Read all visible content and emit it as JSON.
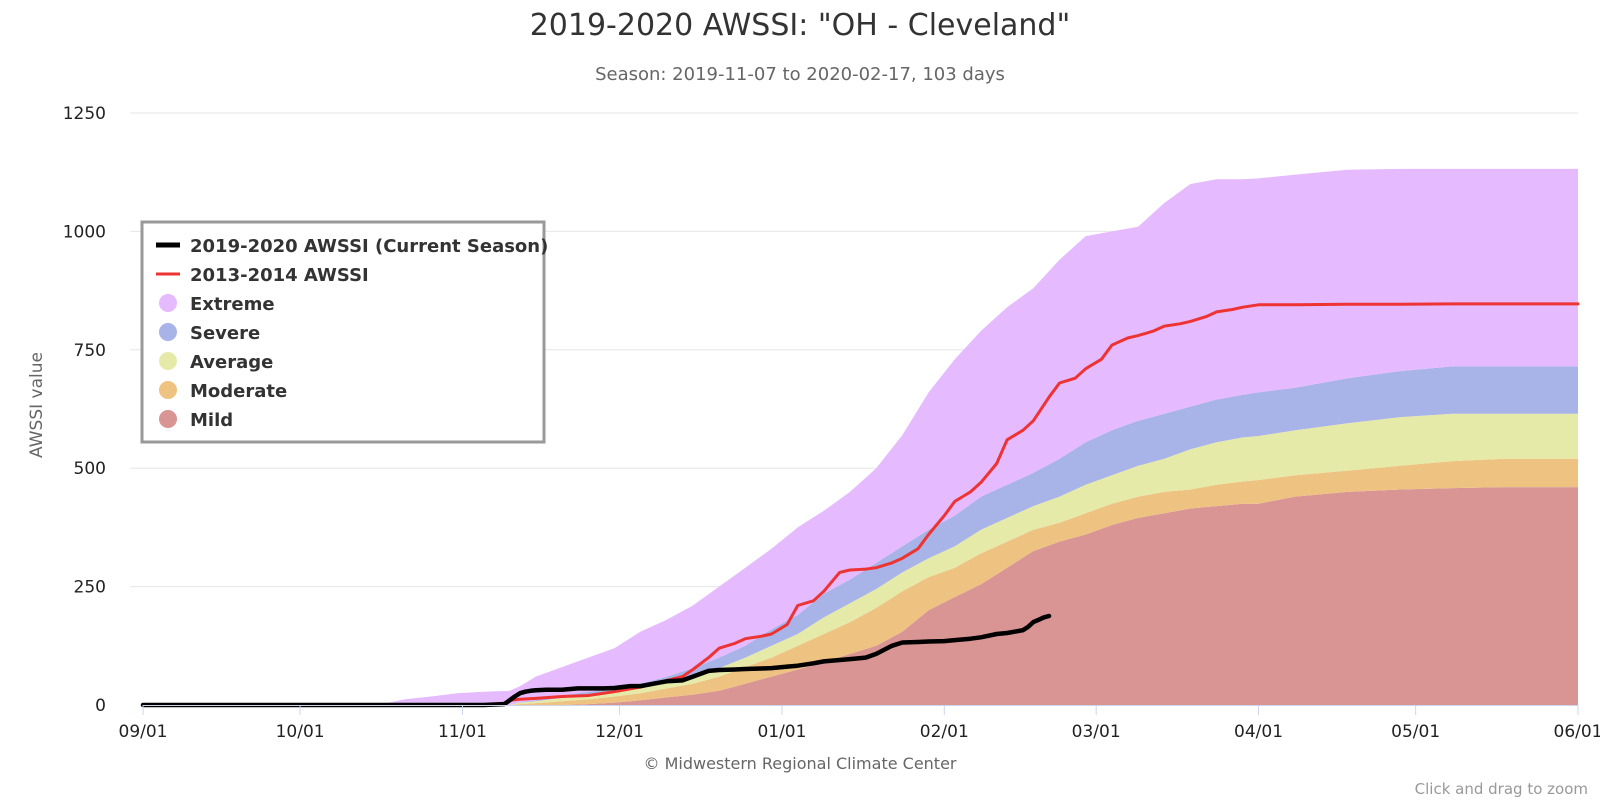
{
  "chart_data": {
    "type": "area",
    "title": "2019-2020 AWSSI: \"OH - Cleveland\"",
    "subtitle": "Season: 2019-11-07 to 2020-02-17, 103 days",
    "ylabel": "AWSSI value",
    "xlabel": "",
    "ylim": [
      0,
      1250
    ],
    "yticks": [
      0,
      250,
      500,
      750,
      1000,
      1250
    ],
    "x_domain_days": [
      0,
      274
    ],
    "xticks": [
      {
        "label": "09/01",
        "day": 0
      },
      {
        "label": "10/01",
        "day": 30
      },
      {
        "label": "11/01",
        "day": 61
      },
      {
        "label": "12/01",
        "day": 91
      },
      {
        "label": "01/01",
        "day": 122
      },
      {
        "label": "02/01",
        "day": 153
      },
      {
        "label": "03/01",
        "day": 182
      },
      {
        "label": "04/01",
        "day": 213
      },
      {
        "label": "05/01",
        "day": 243
      },
      {
        "label": "06/01",
        "day": 274
      }
    ],
    "bands_x_days": [
      0,
      40,
      47,
      50,
      55,
      60,
      65,
      70,
      72,
      75,
      80,
      85,
      90,
      95,
      100,
      105,
      110,
      115,
      120,
      125,
      130,
      135,
      140,
      145,
      150,
      155,
      160,
      165,
      170,
      175,
      180,
      185,
      190,
      195,
      200,
      205,
      210,
      213,
      220,
      230,
      240,
      250,
      260,
      274
    ],
    "bands": [
      {
        "name": "Mild",
        "color": "#d99594",
        "low": [
          0,
          0,
          0,
          0,
          0,
          0,
          0,
          0,
          0,
          0,
          0,
          0,
          0,
          0,
          0,
          0,
          0,
          0,
          0,
          0,
          0,
          0,
          0,
          0,
          0,
          0,
          0,
          0,
          0,
          0,
          0,
          0,
          0,
          0,
          0,
          0,
          0,
          0,
          0,
          0,
          0,
          0,
          0,
          0
        ],
        "high": [
          0,
          0,
          0,
          0,
          0,
          0,
          0,
          0,
          0,
          0,
          0,
          2,
          5,
          10,
          16,
          22,
          30,
          45,
          60,
          75,
          90,
          108,
          125,
          155,
          200,
          228,
          255,
          290,
          325,
          345,
          360,
          380,
          395,
          405,
          415,
          420,
          425,
          425,
          440,
          450,
          455,
          458,
          460,
          460
        ]
      },
      {
        "name": "Moderate",
        "color": "#eec382",
        "high": [
          0,
          0,
          0,
          0,
          0,
          0,
          0,
          0,
          2,
          4,
          8,
          12,
          18,
          25,
          35,
          45,
          60,
          80,
          100,
          125,
          150,
          175,
          205,
          240,
          270,
          290,
          320,
          345,
          370,
          385,
          405,
          425,
          440,
          450,
          455,
          465,
          472,
          475,
          485,
          495,
          505,
          515,
          520,
          520
        ]
      },
      {
        "name": "Average",
        "color": "#e6eaa9",
        "high": [
          0,
          0,
          0,
          0,
          0,
          0,
          0,
          0,
          5,
          8,
          15,
          20,
          27,
          35,
          47,
          60,
          78,
          100,
          125,
          150,
          185,
          215,
          245,
          280,
          310,
          335,
          370,
          395,
          420,
          440,
          465,
          485,
          505,
          520,
          540,
          555,
          565,
          568,
          580,
          595,
          608,
          615,
          615,
          615
        ]
      },
      {
        "name": "Severe",
        "color": "#a8b3e8",
        "high": [
          0,
          0,
          0,
          0,
          0,
          0,
          0,
          0,
          6,
          10,
          20,
          28,
          35,
          45,
          60,
          78,
          100,
          125,
          160,
          190,
          235,
          265,
          300,
          335,
          370,
          400,
          440,
          465,
          490,
          520,
          555,
          580,
          600,
          615,
          630,
          645,
          655,
          660,
          670,
          690,
          705,
          715,
          715,
          715
        ]
      },
      {
        "name": "Extreme",
        "color": "#e6baff",
        "high": [
          0,
          0,
          5,
          12,
          18,
          25,
          28,
          30,
          40,
          60,
          80,
          100,
          120,
          155,
          180,
          210,
          250,
          290,
          330,
          375,
          410,
          450,
          500,
          570,
          660,
          730,
          790,
          840,
          880,
          940,
          990,
          1000,
          1010,
          1060,
          1100,
          1110,
          1110,
          1112,
          1120,
          1130,
          1132,
          1132,
          1132,
          1132
        ]
      }
    ],
    "series": [
      {
        "name": "2019-2020 AWSSI (Current Season)",
        "color": "#000000",
        "x": [
          0,
          65,
          69,
          70,
          71,
          72,
          73,
          74,
          75,
          77,
          80,
          83,
          85,
          88,
          90,
          93,
          95,
          98,
          100,
          103,
          105,
          108,
          110,
          113,
          115,
          118,
          120,
          123,
          125,
          128,
          130,
          133,
          135,
          138,
          140,
          143,
          145,
          148,
          150,
          153,
          155,
          158,
          160,
          163,
          165,
          168,
          169,
          170,
          171,
          172,
          173
        ],
        "y": [
          0,
          0,
          2,
          10,
          18,
          25,
          28,
          30,
          31,
          32,
          32,
          35,
          35,
          35,
          36,
          40,
          40,
          46,
          50,
          52,
          60,
          72,
          74,
          75,
          76,
          77,
          78,
          81,
          83,
          88,
          92,
          95,
          97,
          100,
          108,
          125,
          132,
          133,
          134,
          135,
          137,
          140,
          143,
          150,
          152,
          158,
          165,
          175,
          180,
          185,
          188
        ]
      },
      {
        "name": "2013-2014 AWSSI",
        "color": "#ee3333",
        "x": [
          0,
          65,
          69,
          70,
          72,
          75,
          80,
          85,
          90,
          95,
          100,
          103,
          105,
          108,
          110,
          113,
          115,
          118,
          120,
          123,
          125,
          128,
          130,
          133,
          135,
          138,
          140,
          143,
          145,
          148,
          150,
          153,
          155,
          158,
          160,
          163,
          165,
          168,
          170,
          173,
          175,
          178,
          180,
          183,
          185,
          188,
          190,
          193,
          195,
          198,
          200,
          203,
          205,
          208,
          210,
          213,
          220,
          230,
          240,
          250,
          274
        ],
        "y": [
          0,
          0,
          4,
          10,
          12,
          14,
          18,
          20,
          28,
          38,
          52,
          60,
          75,
          100,
          120,
          130,
          140,
          145,
          150,
          170,
          210,
          220,
          240,
          280,
          285,
          287,
          290,
          300,
          310,
          330,
          360,
          400,
          430,
          450,
          470,
          510,
          560,
          580,
          600,
          650,
          680,
          690,
          710,
          730,
          760,
          775,
          780,
          790,
          800,
          805,
          810,
          820,
          830,
          835,
          840,
          845,
          845,
          846,
          846,
          847,
          847
        ]
      }
    ],
    "legend": {
      "position": "left-middle",
      "items": [
        {
          "label": "2019-2020 AWSSI (Current Season)",
          "kind": "line",
          "color": "#000000"
        },
        {
          "label": "2013-2014 AWSSI",
          "kind": "line",
          "color": "#ee3333"
        },
        {
          "label": "Extreme",
          "kind": "dot",
          "color": "#e6baff"
        },
        {
          "label": "Severe",
          "kind": "dot",
          "color": "#a8b3e8"
        },
        {
          "label": "Average",
          "kind": "dot",
          "color": "#e6eaa9"
        },
        {
          "label": "Moderate",
          "kind": "dot",
          "color": "#eec382"
        },
        {
          "label": "Mild",
          "kind": "dot",
          "color": "#d99594"
        }
      ]
    },
    "credit": "© Midwestern Regional Climate Center",
    "zoom_hint": "Click and drag to zoom",
    "grid": true
  }
}
